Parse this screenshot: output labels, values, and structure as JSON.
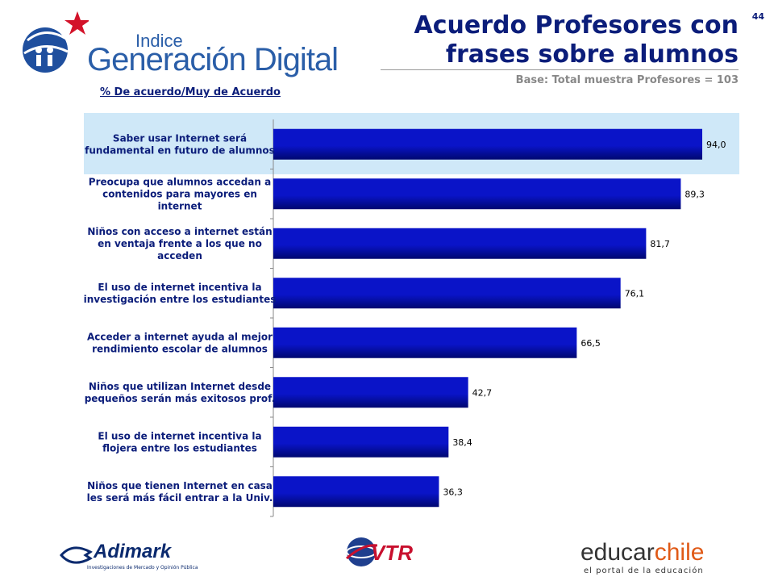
{
  "page_number": "44",
  "logo": {
    "kicker": "Indice",
    "brand": "Generación Digital"
  },
  "header": {
    "title_line1": "Acuerdo Profesores con",
    "title_line2": "frases sobre alumnos",
    "subtitle": "Base: Total muestra Profesores = 103"
  },
  "unit_label": "% De acuerdo/Muy de Acuerdo",
  "footer": {
    "adimark_name": "Adimark",
    "adimark_tag": "Investigaciones de Mercado y Opinión Pública",
    "vtr_name": "VTR",
    "educar_name_a": "educar",
    "educar_name_b": "chile",
    "educar_tag": "el portal de la educación"
  },
  "colors": {
    "bar": "#0a14c8",
    "bar_dark": "#000870",
    "title": "#0b1d7a",
    "highlight": "#cfe8f8"
  },
  "chart_data": {
    "type": "bar",
    "orientation": "horizontal",
    "title": "Acuerdo Profesores con frases sobre alumnos",
    "xlabel": "",
    "ylabel": "",
    "xlim": [
      0,
      100
    ],
    "grid": false,
    "legend": "none",
    "categories": [
      [
        "Saber usar Internet será",
        "fundamental en futuro de alumnos"
      ],
      [
        "Preocupa que alumnos accedan a",
        "contenidos para mayores en",
        "internet"
      ],
      [
        "Niños con acceso a internet están",
        "en ventaja frente a los que no",
        "acceden"
      ],
      [
        "El uso de internet incentiva la",
        "investigación entre los estudiantes"
      ],
      [
        "Acceder a internet ayuda al mejor",
        "rendimiento escolar de alumnos"
      ],
      [
        "Niños que utilizan Internet desde",
        "pequeños serán más exitosos prof."
      ],
      [
        "El uso de internet incentiva la",
        "flojera entre los estudiantes"
      ],
      [
        "Niños que tienen Internet en casa",
        "les será más fácil entrar a la Univ."
      ]
    ],
    "values": [
      94.0,
      89.3,
      81.7,
      76.1,
      66.5,
      42.7,
      38.4,
      36.3
    ],
    "value_labels": [
      "94,0",
      "89,3",
      "81,7",
      "76,1",
      "66,5",
      "42,7",
      "38,4",
      "36,3"
    ],
    "highlighted_index": 0
  }
}
